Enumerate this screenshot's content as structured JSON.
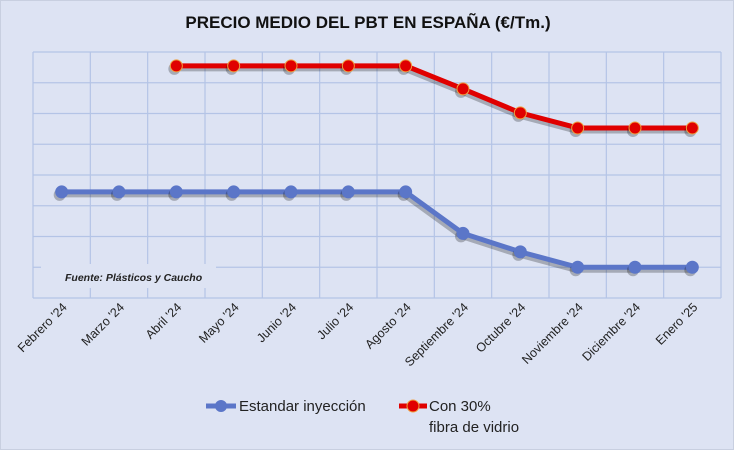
{
  "chart_data": {
    "type": "line",
    "title": "PRECIO MEDIO DEL PBT EN ESPAÑA (€/Tm.)",
    "xlabel": "",
    "ylabel": "",
    "categories": [
      "Febrero '24",
      "Marzo '24",
      "Abril '24",
      "Mayo '24",
      "Junio '24",
      "Julio '24",
      "Agosto '24",
      "Septiembre '24",
      "Octubre '24",
      "Noviembre '24",
      "Diciembre '24",
      "Enero '25"
    ],
    "ylim": [
      0,
      8
    ],
    "y_units_note": "y-axis has no tick labels; values estimated in gridline units",
    "grid": true,
    "legend_position": "bottom",
    "annotation": "Fuente: Plásticos y Caucho",
    "series": [
      {
        "name": "Estandar inyección",
        "color": "#5b76c8",
        "values": [
          3.45,
          3.45,
          3.45,
          3.45,
          3.45,
          3.45,
          3.45,
          2.1,
          1.5,
          1.0,
          1.0,
          1.0
        ]
      },
      {
        "name": "Con 30% fibra de vidrio",
        "name_lines": [
          "Con 30%",
          "fibra de vidrio"
        ],
        "color": "#e00000",
        "values": [
          null,
          null,
          7.55,
          7.55,
          7.55,
          7.55,
          7.55,
          6.8,
          6.02,
          5.53,
          5.53,
          5.53
        ]
      }
    ]
  }
}
